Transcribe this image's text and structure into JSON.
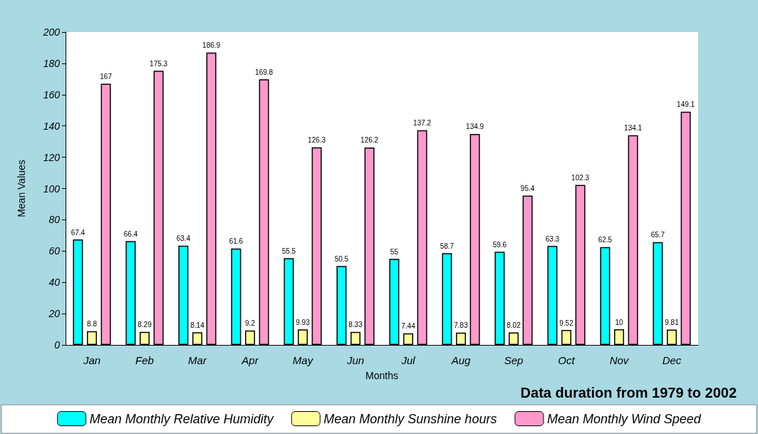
{
  "chart_data": {
    "type": "bar",
    "xlabel": "Months",
    "ylabel": "Mean Values",
    "categories": [
      "Jan",
      "Feb",
      "Mar",
      "Apr",
      "May",
      "Jun",
      "Jul",
      "Aug",
      "Sep",
      "Oct",
      "Nov",
      "Dec"
    ],
    "series": [
      {
        "name": "Mean Monthly Relative Humidity",
        "color": "#00ffff",
        "values": [
          67.4,
          66.4,
          63.4,
          61.6,
          55.5,
          50.5,
          55,
          58.7,
          59.6,
          63.3,
          62.5,
          65.7
        ]
      },
      {
        "name": "Mean Monthly Sunshine hours",
        "color": "#ffff99",
        "values": [
          8.8,
          8.29,
          8.14,
          9.2,
          9.93,
          8.33,
          7.44,
          7.83,
          8.02,
          9.52,
          10,
          9.81
        ]
      },
      {
        "name": "Mean Monthly Wind Speed",
        "color": "#ff99cc",
        "values": [
          167,
          175.3,
          186.9,
          169.8,
          126.3,
          126.2,
          137.2,
          134.9,
          95.4,
          102.3,
          134.1,
          149.1
        ]
      }
    ],
    "ylim": [
      0,
      200
    ],
    "yticks": [
      0,
      20,
      40,
      60,
      80,
      100,
      120,
      140,
      160,
      180,
      200
    ],
    "data_labels": true,
    "grid": false,
    "legend": "bottom",
    "annotations": [
      "Data duration from 1979 to 2002"
    ]
  }
}
